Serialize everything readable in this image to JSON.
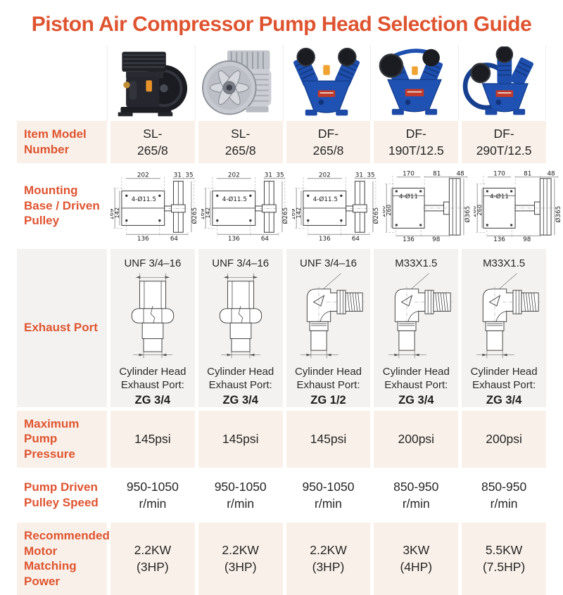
{
  "title": "Piston Air Compressor Pump Head Selection Guide",
  "theme": {
    "accent": "#DF5430",
    "row_tint": "#F9F1E9",
    "row_tint_gray": "#F4F2F0",
    "divider": "#EDEDED",
    "text": "#262626"
  },
  "products": [
    {
      "name": "black twin-cylinder pump head with flywheel"
    },
    {
      "name": "aluminum pump head with fan wheel"
    },
    {
      "name": "blue V-twin pump head with dual air filters"
    },
    {
      "name": "blue V-twin pump head front view"
    },
    {
      "name": "blue three-cylinder pump head with flywheel"
    }
  ],
  "rows": {
    "model": {
      "label": "Item Model Number",
      "values": [
        [
          "SL-",
          "265/8"
        ],
        [
          "SL-",
          "265/8"
        ],
        [
          "DF-",
          "265/8"
        ],
        [
          "DF-",
          "190T/12.5"
        ],
        [
          "DF-",
          "290T/12.5"
        ]
      ]
    },
    "mounting": {
      "label": "Mounting Base / Driven Pulley",
      "drawings": [
        {
          "type": "A",
          "top": "202",
          "p1": "31",
          "p2": "35",
          "lo": "169",
          "li": "142",
          "holes": "4-Ø11.5",
          "dia": "Ø265",
          "b1": "136",
          "b2": "64"
        },
        {
          "type": "A",
          "top": "202",
          "p1": "31",
          "p2": "35",
          "lo": "169",
          "li": "142",
          "holes": "4-Ø11.5",
          "dia": "Ø265",
          "b1": "136",
          "b2": "64"
        },
        {
          "type": "A",
          "top": "202",
          "p1": "31",
          "p2": "35",
          "lo": "169",
          "li": "142",
          "holes": "4-Ø11.5",
          "dia": "Ø265",
          "b1": "136",
          "b2": "64"
        },
        {
          "type": "B",
          "top": "170",
          "p1": "81",
          "p2": "48",
          "lo": "280",
          "li": "260",
          "holes": "4-Ø11",
          "dia": "Ø365",
          "b1": "136",
          "b2": "98"
        },
        {
          "type": "B",
          "top": "170",
          "p1": "81",
          "p2": "48",
          "lo": "280",
          "li": "260",
          "holes": "4-Ø11",
          "dia": "Ø365",
          "b1": "136",
          "b2": "98"
        }
      ]
    },
    "exhaust": {
      "label": "Exhaust Port",
      "items": [
        {
          "thread": "UNF 3/4–16",
          "fitting": "straight",
          "cap1": "Cylinder Head",
          "cap2": "Exhaust Port:",
          "size": "ZG 3/4"
        },
        {
          "thread": "UNF 3/4–16",
          "fitting": "straight",
          "cap1": "Cylinder Head",
          "cap2": "Exhaust Port:",
          "size": "ZG 3/4"
        },
        {
          "thread": "UNF 3/4–16",
          "fitting": "elbow",
          "cap1": "Cylinder Head",
          "cap2": "Exhaust Port:",
          "size": "ZG 1/2"
        },
        {
          "thread": "M33X1.5",
          "fitting": "elbow",
          "cap1": "Cylinder Head",
          "cap2": "Exhaust Port:",
          "size": "ZG 3/4"
        },
        {
          "thread": "M33X1.5",
          "fitting": "elbow",
          "cap1": "Cylinder Head",
          "cap2": "Exhaust Port:",
          "size": "ZG 3/4"
        }
      ]
    },
    "pressure": {
      "label": "Maximum Pump Pressure",
      "values": [
        "145psi",
        "145psi",
        "145psi",
        "200psi",
        "200psi"
      ]
    },
    "speed": {
      "label": "Pump Driven Pulley Speed",
      "values": [
        [
          "950-1050",
          "r/min"
        ],
        [
          "950-1050",
          "r/min"
        ],
        [
          "950-1050",
          "r/min"
        ],
        [
          "850-950",
          "r/min"
        ],
        [
          "850-950",
          "r/min"
        ]
      ]
    },
    "power": {
      "label": "Recommended Motor Matching Power",
      "values": [
        [
          "2.2KW",
          "(3HP)"
        ],
        [
          "2.2KW",
          "(3HP)"
        ],
        [
          "2.2KW",
          "(3HP)"
        ],
        [
          "3KW",
          "(4HP)"
        ],
        [
          "5.5KW",
          "(7.5HP)"
        ]
      ]
    }
  }
}
